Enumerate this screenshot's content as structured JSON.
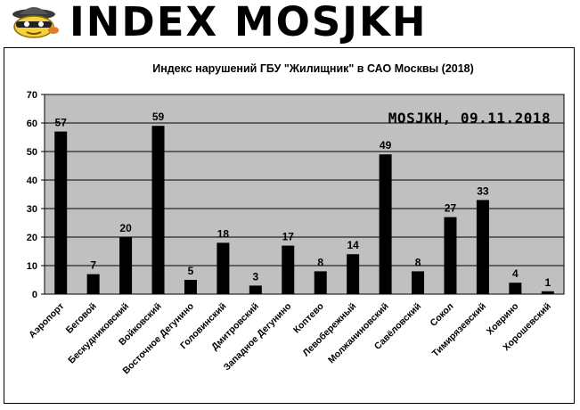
{
  "header": {
    "logo_icon": "spy-detective-icon",
    "title": "INDEX MOSJKH"
  },
  "chart_data": {
    "type": "bar",
    "title": "Индекс нарушений ГБУ \"Жилищник\" в САО Москвы (2018)",
    "watermark": "MOSJKH, 09.11.2018",
    "xlabel": "",
    "ylabel": "",
    "ylim": [
      0,
      70
    ],
    "yticks": [
      0,
      10,
      20,
      30,
      40,
      50,
      60,
      70
    ],
    "grid": true,
    "plot_background": "#c0c0c0",
    "bar_color": "#000000",
    "categories": [
      "Аэропорт",
      "Беговой",
      "Бескудниковский",
      "Войковский",
      "Восточное Дегунино",
      "Головинский",
      "Дмитровский",
      "Западное Дегунино",
      "Коптево",
      "Левобережный",
      "Молжаниновский",
      "Савёловский",
      "Сокол",
      "Тимирязевский",
      "Ховрино",
      "Хорошевский"
    ],
    "values": [
      57,
      7,
      20,
      59,
      5,
      18,
      3,
      17,
      8,
      14,
      49,
      8,
      27,
      33,
      4,
      1
    ]
  }
}
